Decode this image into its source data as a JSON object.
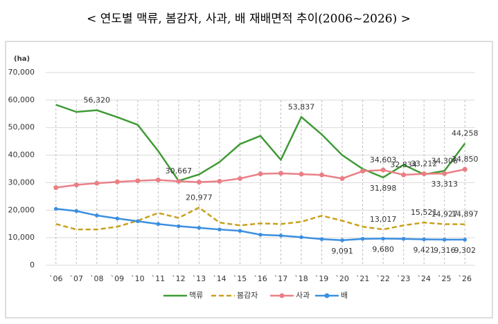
{
  "chart_data": {
    "type": "line",
    "title": "< 연도별 맥류, 봄감자, 사과, 배 재배면적 추이(2006~2026) >",
    "y_axis_label": "(ha)",
    "categories": [
      "`06",
      "`07",
      "`08",
      "`09",
      "`10",
      "`11",
      "`12",
      "`13",
      "`14",
      "`15",
      "`16",
      "`17",
      "`18",
      "`19",
      "`20",
      "`21",
      "`22",
      "`23",
      "`24",
      "`25",
      "`26"
    ],
    "ylim": [
      0,
      70000
    ],
    "yticks": [
      0,
      {
        "value": 10000,
        "label": "10,000"
      },
      {
        "value": 20000,
        "label": "20,000"
      },
      {
        "value": 30000,
        "label": "30,000"
      },
      {
        "value": 40000,
        "label": "40,000"
      },
      {
        "value": 50000,
        "label": "50,000"
      },
      {
        "value": 60000,
        "label": "60,000"
      },
      {
        "value": 70000,
        "label": "70,000"
      }
    ],
    "grid": true,
    "legend": "bottom",
    "series": [
      {
        "name": "맥류",
        "color": "#3f9a35",
        "dash": false,
        "marker": false,
        "values": [
          58300,
          55700,
          56320,
          53800,
          51000,
          41500,
          30667,
          33000,
          37500,
          44000,
          47000,
          38300,
          53837,
          47500,
          40000,
          35000,
          31898,
          36500,
          33000,
          34306,
          44258
        ],
        "value_labels": [
          null,
          null,
          "56,320",
          null,
          null,
          null,
          "30,667",
          null,
          null,
          null,
          null,
          null,
          "53,837",
          null,
          null,
          null,
          "31,898",
          null,
          null,
          "34,306",
          "44,258"
        ]
      },
      {
        "name": "봄감자",
        "color": "#c9a01a",
        "dash": true,
        "marker": false,
        "values": [
          15000,
          13000,
          13000,
          14000,
          16200,
          19000,
          17200,
          20977,
          15500,
          14500,
          15200,
          15000,
          15800,
          18000,
          16200,
          14000,
          13017,
          14500,
          15521,
          14927,
          14897
        ],
        "value_labels": [
          null,
          null,
          null,
          null,
          null,
          null,
          null,
          "20,977",
          null,
          null,
          null,
          null,
          null,
          null,
          null,
          null,
          "13,017",
          null,
          "15,521",
          "14,927",
          "14,897"
        ]
      },
      {
        "name": "사과",
        "color": "#ea7f86",
        "dash": false,
        "marker": true,
        "values": [
          28200,
          29200,
          29800,
          30300,
          30700,
          31000,
          30500,
          30200,
          30500,
          31500,
          33200,
          33400,
          33100,
          32800,
          31500,
          34200,
          34603,
          32834,
          33212,
          33313,
          34850
        ],
        "value_labels": [
          null,
          null,
          null,
          null,
          null,
          null,
          null,
          null,
          null,
          null,
          null,
          null,
          null,
          null,
          null,
          null,
          "34,603",
          "32,834",
          "33,212",
          "33,313",
          "34,850"
        ]
      },
      {
        "name": "배",
        "color": "#3b8fe0",
        "dash": false,
        "marker": true,
        "values": [
          20500,
          19700,
          18100,
          17000,
          16000,
          15000,
          14200,
          13600,
          13000,
          12500,
          11100,
          10800,
          10200,
          9500,
          9091,
          9600,
          9680,
          9600,
          9421,
          9316,
          9302
        ],
        "value_labels": [
          null,
          null,
          null,
          null,
          null,
          null,
          null,
          null,
          null,
          null,
          null,
          null,
          null,
          null,
          "9,091",
          null,
          "9,680",
          null,
          "9,421",
          "9,316",
          "9,302"
        ]
      }
    ]
  }
}
